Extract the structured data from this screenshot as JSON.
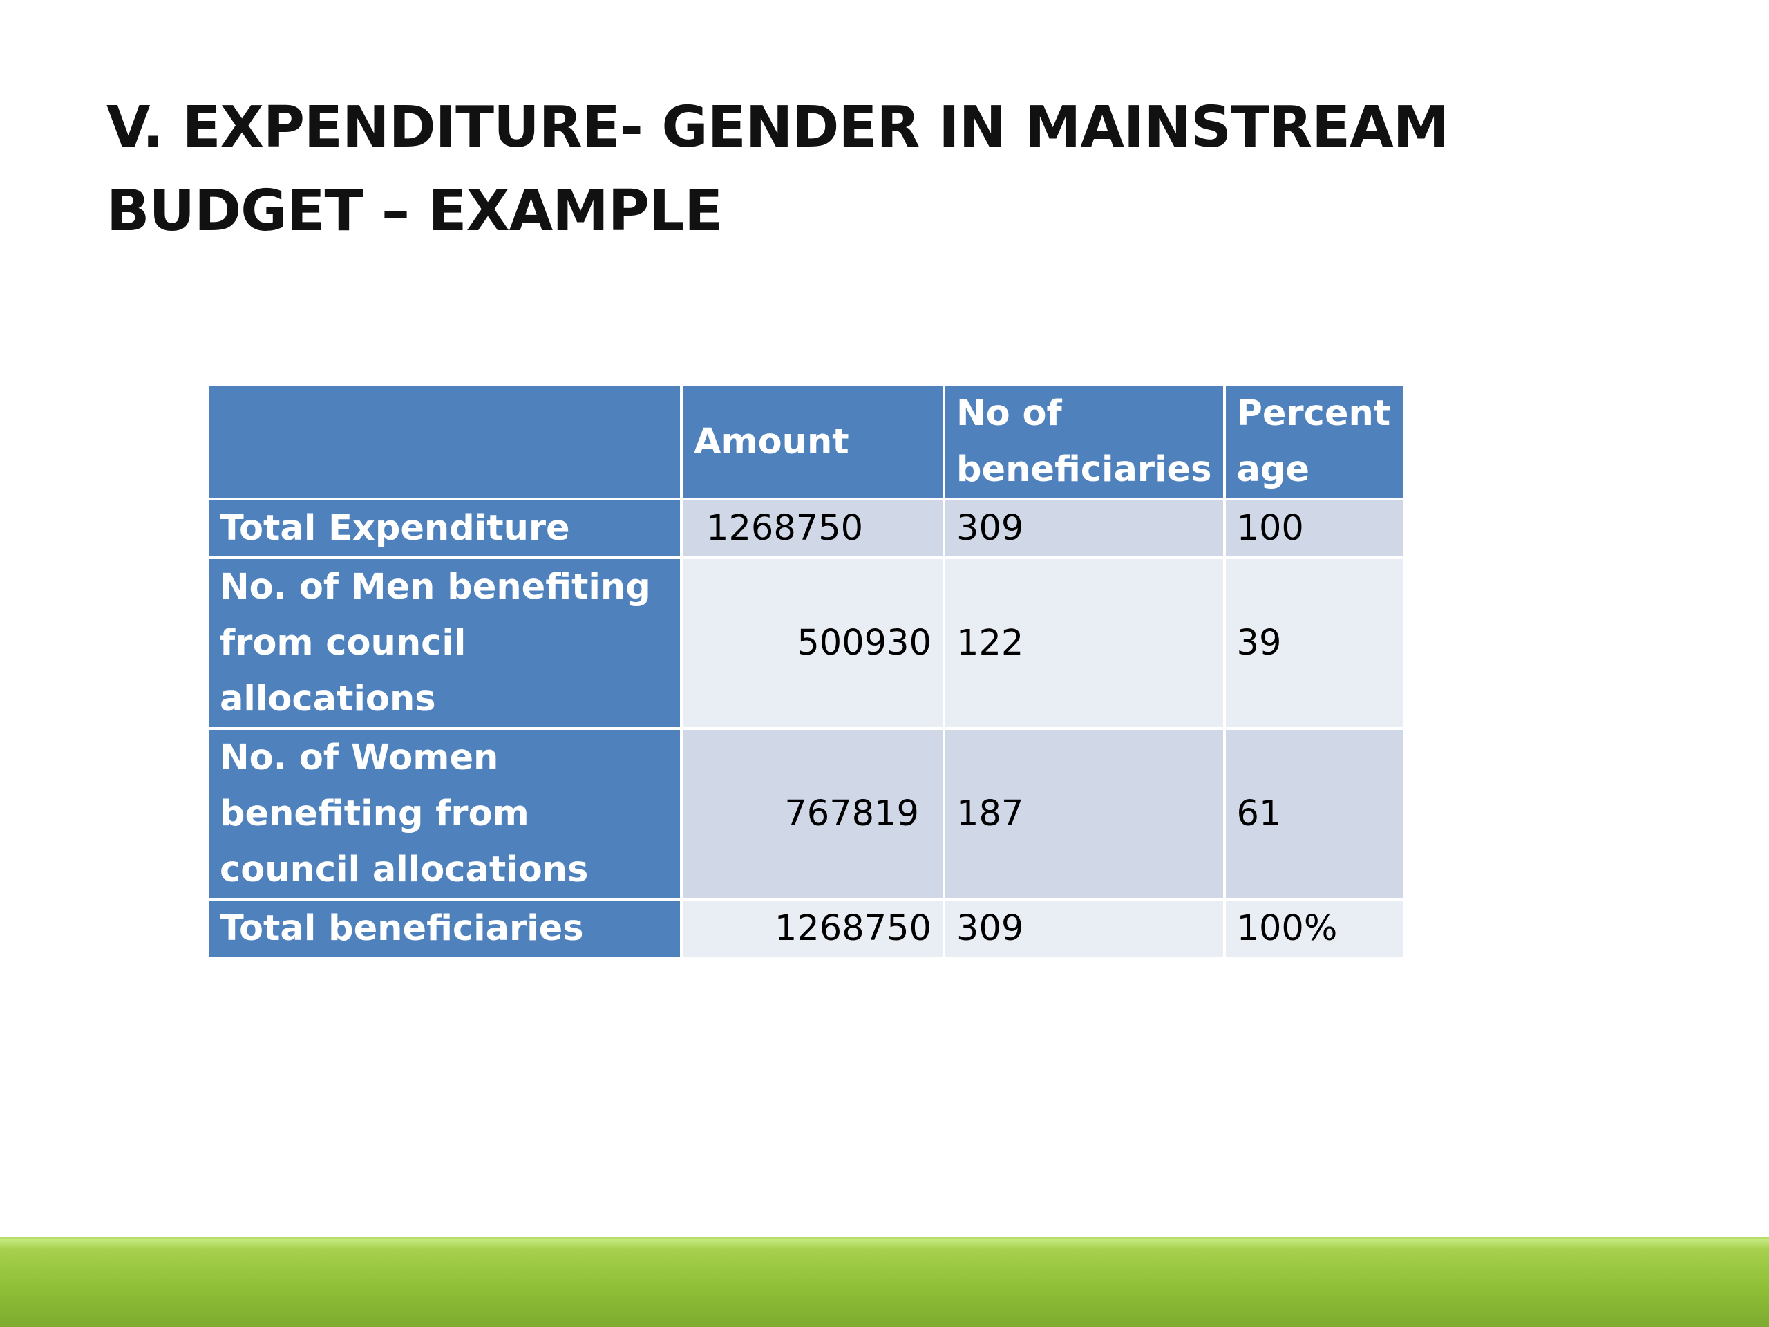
{
  "slide": {
    "title": "V. EXPENDITURE- GENDER IN MAINSTREAM BUDGET – EXAMPLE"
  },
  "table": {
    "headers": [
      "",
      "Amount",
      "No of beneficiaries",
      "Percent age"
    ],
    "rows": [
      {
        "label": "Total Expenditure",
        "amount": "1268750",
        "beneficiaries": "309",
        "percentage": "100"
      },
      {
        "label": "No. of Men benefiting from council allocations",
        "amount": "500930",
        "beneficiaries": "122",
        "percentage": "39"
      },
      {
        "label": "No. of Women benefiting from council allocations",
        "amount": "767819",
        "beneficiaries": "187",
        "percentage": "61"
      },
      {
        "label": "Total beneficiaries",
        "amount": "1268750",
        "beneficiaries": "309",
        "percentage": "100%"
      }
    ]
  },
  "colors": {
    "header_blue": "#4f81bd",
    "row_dark": "#d0d8e8",
    "row_light": "#e9edf4",
    "footer_green": "#8fbf37"
  }
}
